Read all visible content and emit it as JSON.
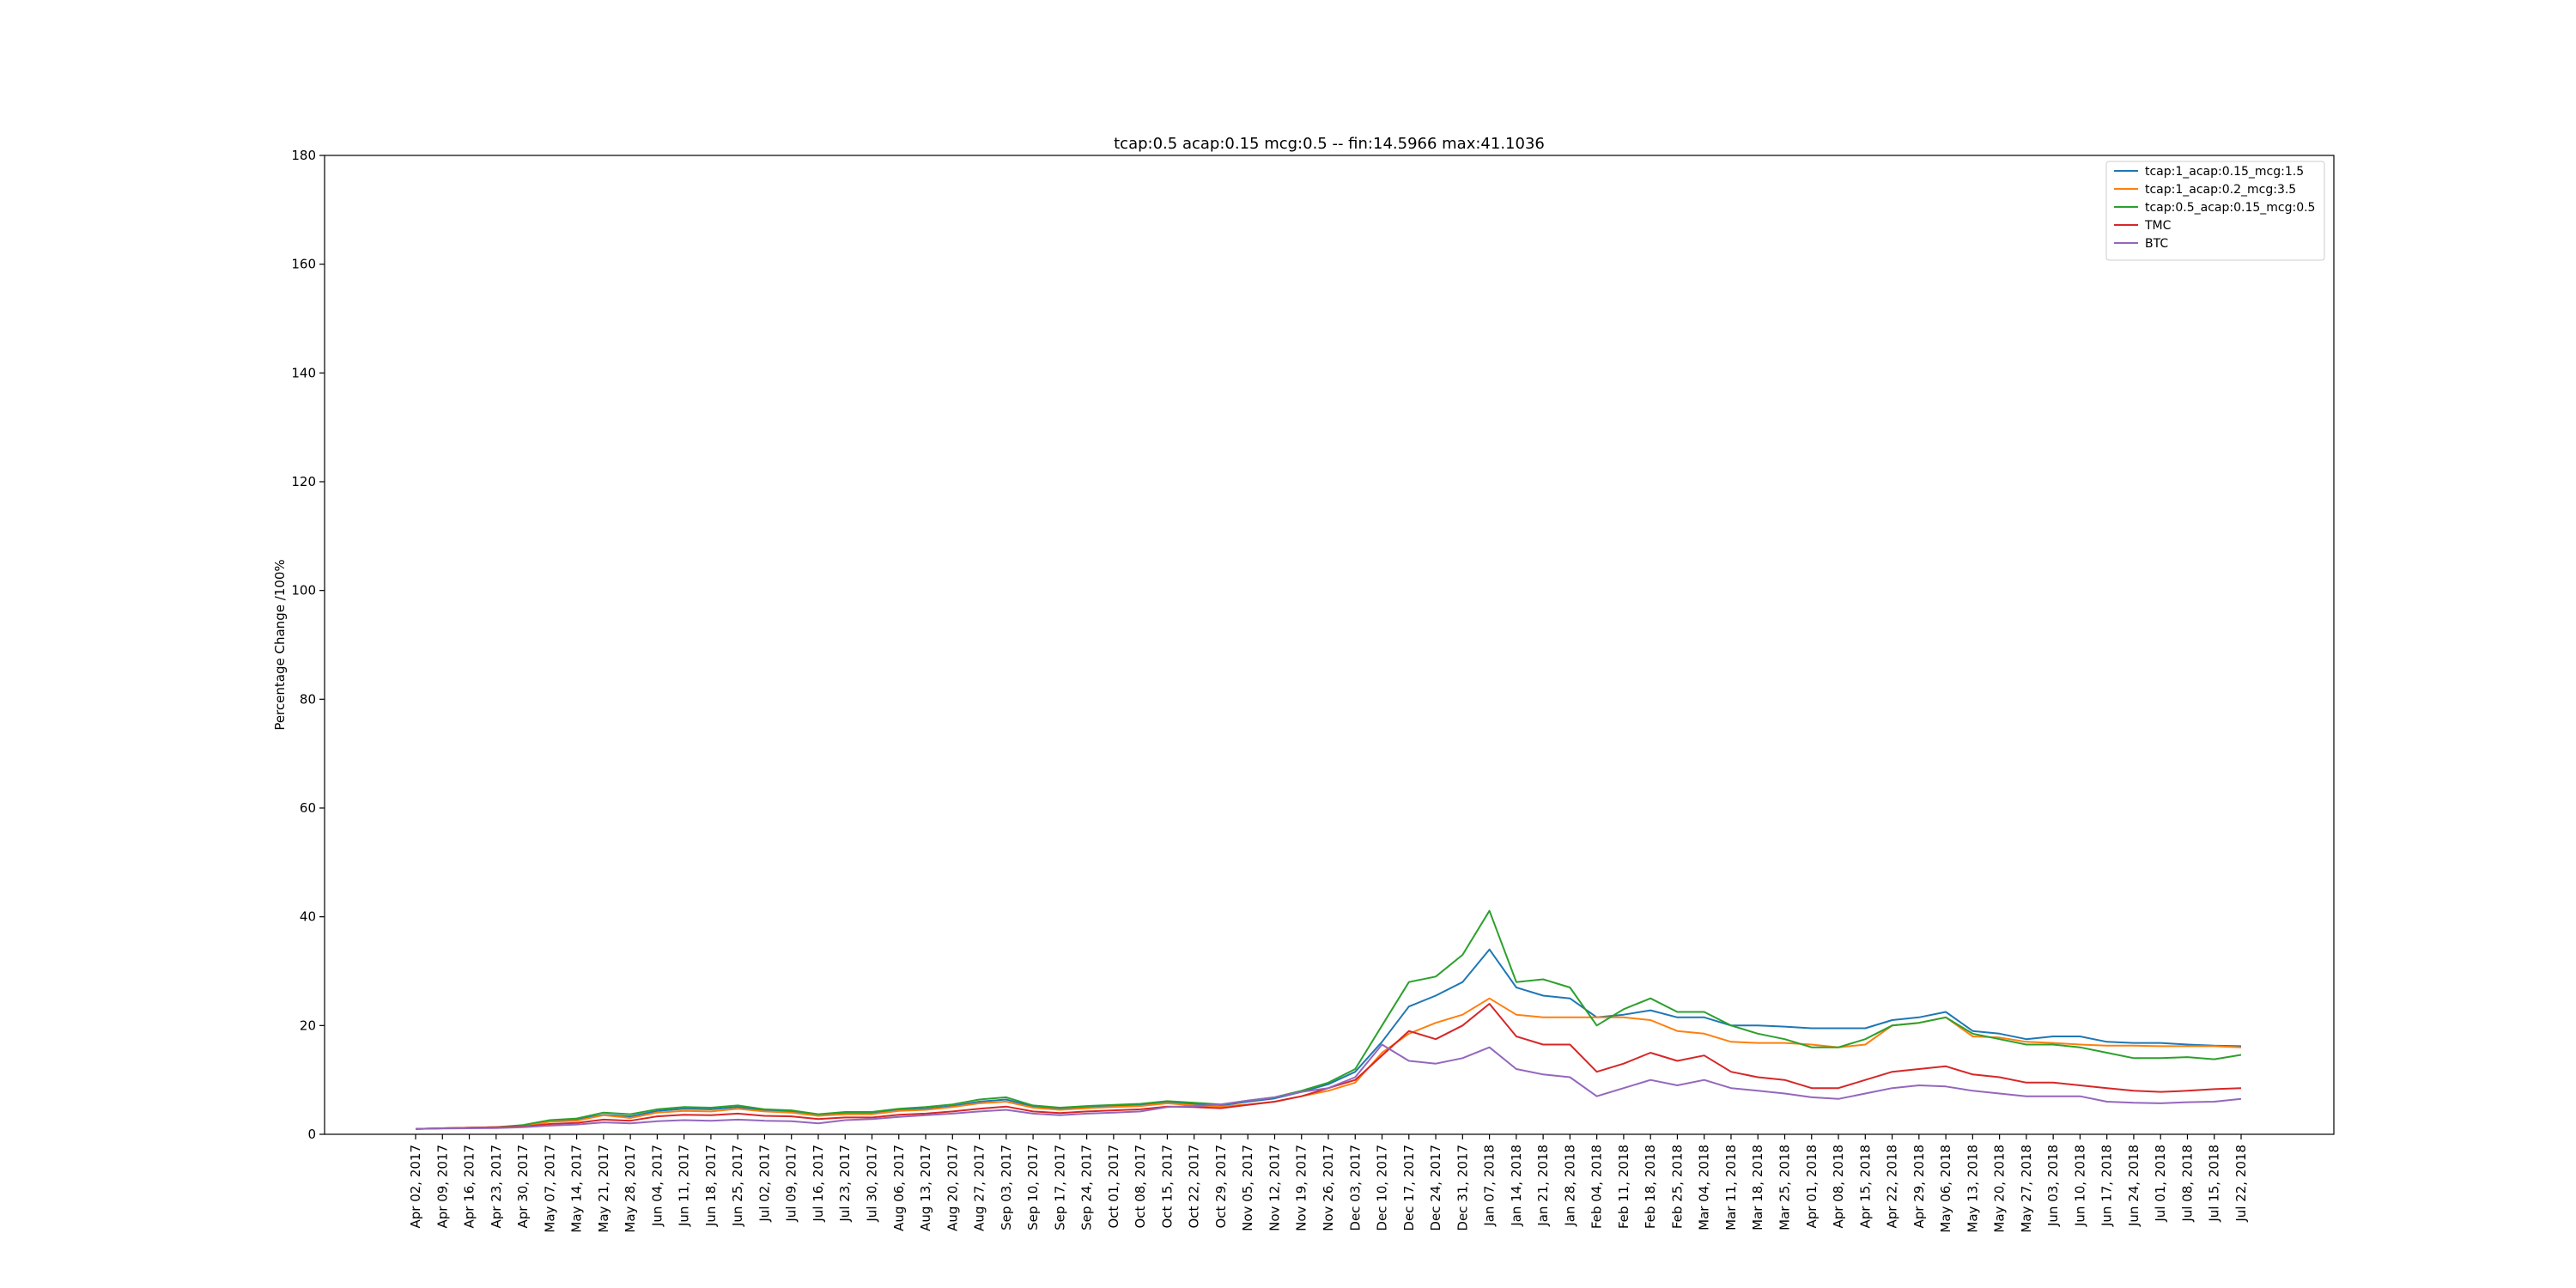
{
  "chart_data": {
    "type": "line",
    "title": "tcap:0.5 acap:0.15 mcg:0.5 -- fin:14.5966 max:41.1036",
    "ylabel": "Percentage Change /100%",
    "xlabel": "",
    "ylim": [
      0,
      180
    ],
    "yticks": [
      0,
      20,
      40,
      60,
      80,
      100,
      120,
      140,
      160,
      180
    ],
    "grid": false,
    "legend_position": "top-right",
    "x": [
      "Apr 02, 2017",
      "Apr 09, 2017",
      "Apr 16, 2017",
      "Apr 23, 2017",
      "Apr 30, 2017",
      "May 07, 2017",
      "May 14, 2017",
      "May 21, 2017",
      "May 28, 2017",
      "Jun 04, 2017",
      "Jun 11, 2017",
      "Jun 18, 2017",
      "Jun 25, 2017",
      "Jul 02, 2017",
      "Jul 09, 2017",
      "Jul 16, 2017",
      "Jul 23, 2017",
      "Jul 30, 2017",
      "Aug 06, 2017",
      "Aug 13, 2017",
      "Aug 20, 2017",
      "Aug 27, 2017",
      "Sep 03, 2017",
      "Sep 10, 2017",
      "Sep 17, 2017",
      "Sep 24, 2017",
      "Oct 01, 2017",
      "Oct 08, 2017",
      "Oct 15, 2017",
      "Oct 22, 2017",
      "Oct 29, 2017",
      "Nov 05, 2017",
      "Nov 12, 2017",
      "Nov 19, 2017",
      "Nov 26, 2017",
      "Dec 03, 2017",
      "Dec 10, 2017",
      "Dec 17, 2017",
      "Dec 24, 2017",
      "Dec 31, 2017",
      "Jan 07, 2018",
      "Jan 14, 2018",
      "Jan 21, 2018",
      "Jan 28, 2018",
      "Feb 04, 2018",
      "Feb 11, 2018",
      "Feb 18, 2018",
      "Feb 25, 2018",
      "Mar 04, 2018",
      "Mar 11, 2018",
      "Mar 18, 2018",
      "Mar 25, 2018",
      "Apr 01, 2018",
      "Apr 08, 2018",
      "Apr 15, 2018",
      "Apr 22, 2018",
      "Apr 29, 2018",
      "May 06, 2018",
      "May 13, 2018",
      "May 20, 2018",
      "May 27, 2018",
      "Jun 03, 2018",
      "Jun 10, 2018",
      "Jun 17, 2018",
      "Jun 24, 2018",
      "Jul 01, 2018",
      "Jul 08, 2018",
      "Jul 15, 2018",
      "Jul 22, 2018"
    ],
    "series": [
      {
        "name": "tcap:1_acap:0.15_mcg:1.5",
        "color": "#1f77b4",
        "values": [
          1.0,
          1.1,
          1.2,
          1.3,
          1.6,
          2.4,
          2.7,
          3.6,
          3.3,
          4.3,
          4.7,
          4.6,
          5.0,
          4.4,
          4.2,
          3.5,
          3.9,
          3.9,
          4.5,
          4.7,
          5.2,
          6.0,
          6.4,
          5.1,
          4.7,
          5.0,
          5.2,
          5.4,
          5.9,
          5.6,
          5.3,
          6.0,
          6.6,
          7.8,
          9.2,
          11.5,
          17.0,
          23.5,
          25.5,
          28.0,
          34.0,
          27.0,
          25.5,
          25.0,
          21.5,
          22.0,
          22.8,
          21.5,
          21.5,
          20.0,
          20.0,
          19.8,
          19.5,
          19.5,
          19.5,
          21.0,
          21.5,
          22.5,
          19.0,
          18.5,
          17.5,
          18.0,
          18.0,
          17.0,
          16.8,
          16.8,
          16.5,
          16.3,
          16.2
        ]
      },
      {
        "name": "tcap:1_acap:0.2_mcg:3.5",
        "color": "#ff7f0e",
        "values": [
          1.0,
          1.1,
          1.2,
          1.3,
          1.5,
          2.3,
          2.5,
          3.5,
          3.0,
          4.0,
          4.3,
          4.2,
          4.7,
          4.2,
          4.0,
          3.4,
          3.7,
          3.7,
          4.3,
          4.5,
          5.0,
          5.7,
          6.0,
          4.9,
          4.5,
          4.8,
          5.0,
          5.2,
          5.7,
          5.3,
          5.1,
          5.5,
          6.0,
          7.0,
          8.0,
          9.5,
          15.0,
          18.5,
          20.5,
          22.0,
          25.0,
          22.0,
          21.5,
          21.5,
          21.5,
          21.5,
          21.0,
          19.0,
          18.5,
          17.0,
          16.8,
          16.8,
          16.5,
          16.0,
          16.5,
          20.0,
          20.5,
          21.5,
          18.0,
          17.8,
          17.0,
          16.8,
          16.5,
          16.3,
          16.3,
          16.2,
          16.2,
          16.2,
          16.0
        ]
      },
      {
        "name": "tcap:0.5_acap:0.15_mcg:0.5",
        "color": "#2ca02c",
        "values": [
          1.0,
          1.1,
          1.2,
          1.3,
          1.7,
          2.6,
          2.9,
          4.0,
          3.7,
          4.6,
          5.0,
          4.9,
          5.3,
          4.6,
          4.4,
          3.7,
          4.1,
          4.1,
          4.7,
          5.0,
          5.5,
          6.4,
          6.8,
          5.3,
          4.9,
          5.2,
          5.4,
          5.6,
          6.1,
          5.8,
          5.5,
          6.2,
          6.8,
          8.0,
          9.5,
          12.0,
          20.0,
          28.0,
          29.0,
          33.0,
          41.1,
          28.0,
          28.5,
          27.0,
          20.0,
          23.0,
          25.0,
          22.5,
          22.5,
          20.0,
          18.5,
          17.5,
          16.0,
          16.0,
          17.5,
          20.0,
          20.5,
          21.5,
          18.5,
          17.5,
          16.5,
          16.5,
          16.0,
          15.0,
          14.0,
          14.0,
          14.2,
          13.8,
          14.6
        ]
      },
      {
        "name": "TMC",
        "color": "#d62728",
        "values": [
          1.0,
          1.1,
          1.2,
          1.3,
          1.4,
          1.9,
          2.1,
          2.7,
          2.5,
          3.3,
          3.6,
          3.5,
          3.8,
          3.4,
          3.3,
          2.8,
          3.1,
          3.1,
          3.6,
          3.8,
          4.2,
          4.7,
          5.1,
          4.2,
          3.9,
          4.2,
          4.4,
          4.6,
          5.1,
          5.0,
          4.8,
          5.4,
          6.0,
          7.0,
          8.5,
          10.0,
          14.5,
          19.0,
          17.5,
          20.0,
          24.0,
          18.0,
          16.5,
          16.5,
          11.5,
          13.0,
          15.0,
          13.5,
          14.5,
          11.5,
          10.5,
          10.0,
          8.5,
          8.5,
          10.0,
          11.5,
          12.0,
          12.5,
          11.0,
          10.5,
          9.5,
          9.5,
          9.0,
          8.5,
          8.0,
          7.8,
          8.0,
          8.3,
          8.5
        ]
      },
      {
        "name": "BTC",
        "color": "#9467bd",
        "values": [
          1.0,
          1.05,
          1.1,
          1.15,
          1.3,
          1.6,
          1.8,
          2.2,
          2.0,
          2.4,
          2.6,
          2.5,
          2.7,
          2.5,
          2.4,
          2.0,
          2.6,
          2.8,
          3.2,
          3.5,
          3.8,
          4.2,
          4.5,
          3.8,
          3.5,
          3.8,
          4.0,
          4.2,
          5.0,
          5.2,
          5.5,
          6.2,
          6.8,
          7.8,
          8.5,
          10.5,
          16.5,
          13.5,
          13.0,
          14.0,
          16.0,
          12.0,
          11.0,
          10.5,
          7.0,
          8.5,
          10.0,
          9.0,
          10.0,
          8.5,
          8.0,
          7.5,
          6.8,
          6.5,
          7.5,
          8.5,
          9.0,
          8.8,
          8.0,
          7.5,
          7.0,
          7.0,
          7.0,
          6.0,
          5.8,
          5.7,
          5.9,
          6.0,
          6.5
        ]
      }
    ]
  }
}
